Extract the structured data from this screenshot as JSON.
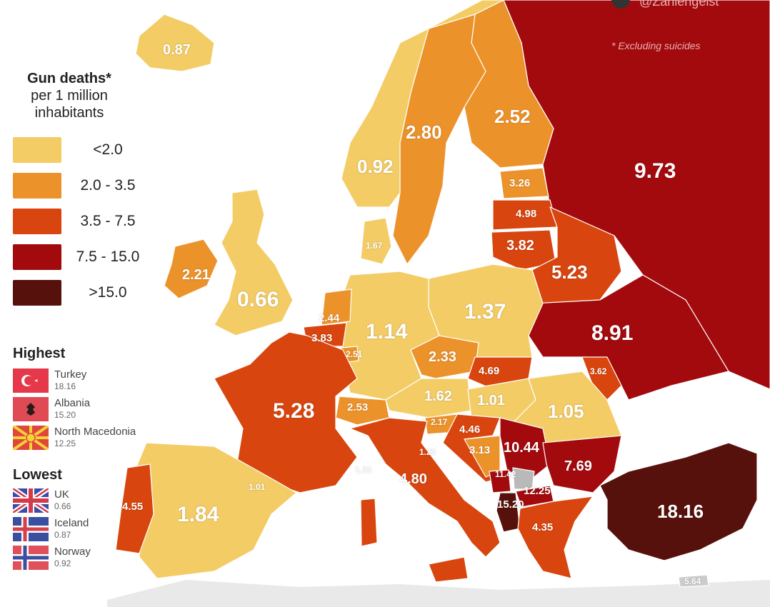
{
  "credit": {
    "handle": "@Zahlengeist",
    "note": "* Excluding suicides"
  },
  "legend": {
    "title_bold": "Gun deaths*",
    "title_line2": "per 1 million",
    "title_line3": "inhabitants",
    "bins": [
      {
        "label": "<2.0",
        "color": "#f3cc66"
      },
      {
        "label": "2.0 - 3.5",
        "color": "#ec922a"
      },
      {
        "label": "3.5 - 7.5",
        "color": "#d8450e"
      },
      {
        "label": "7.5 - 15.0",
        "color": "#a20a0d"
      },
      {
        "label": ">15.0",
        "color": "#57110c"
      }
    ]
  },
  "highest": {
    "heading": "Highest",
    "items": [
      {
        "name": "Turkey",
        "value": "18.16"
      },
      {
        "name": "Albania",
        "value": "15.20"
      },
      {
        "name": "North Macedonia",
        "value": "12.25"
      }
    ]
  },
  "lowest": {
    "heading": "Lowest",
    "items": [
      {
        "name": "UK",
        "value": "0.66"
      },
      {
        "name": "Iceland",
        "value": "0.87"
      },
      {
        "name": "Norway",
        "value": "0.92"
      }
    ]
  },
  "regions": {
    "iceland": {
      "value": "0.87",
      "bin": 0
    },
    "norway": {
      "value": "0.92",
      "bin": 0
    },
    "sweden": {
      "value": "2.80",
      "bin": 1
    },
    "finland": {
      "value": "2.52",
      "bin": 1
    },
    "russia": {
      "value": "9.73",
      "bin": 3
    },
    "estonia": {
      "value": "3.26",
      "bin": 1
    },
    "latvia": {
      "value": "4.98",
      "bin": 2
    },
    "lithuania": {
      "value": "3.82",
      "bin": 2
    },
    "belarus": {
      "value": "5.23",
      "bin": 2
    },
    "ukraine": {
      "value": "8.91",
      "bin": 3
    },
    "moldova": {
      "value": "3.62",
      "bin": 2
    },
    "denmark": {
      "value": "1.67",
      "bin": 0
    },
    "ireland": {
      "value": "2.21",
      "bin": 1
    },
    "uk": {
      "value": "0.66",
      "bin": 0
    },
    "netherlands": {
      "value": "2.44",
      "bin": 1
    },
    "belgium": {
      "value": "3.83",
      "bin": 2
    },
    "luxembourg": {
      "value": "2.51",
      "bin": 1
    },
    "germany": {
      "value": "1.14",
      "bin": 0
    },
    "poland": {
      "value": "1.37",
      "bin": 0
    },
    "czechia": {
      "value": "2.33",
      "bin": 1
    },
    "slovakia": {
      "value": "4.69",
      "bin": 2
    },
    "austria": {
      "value": "1.62",
      "bin": 0
    },
    "hungary": {
      "value": "1.01",
      "bin": 0
    },
    "romania": {
      "value": "1.05",
      "bin": 0
    },
    "switzerland": {
      "value": "2.53",
      "bin": 1
    },
    "france": {
      "value": "5.28",
      "bin": 2
    },
    "slovenia": {
      "value": "2.17",
      "bin": 1
    },
    "croatia": {
      "value": "4.46",
      "bin": 2
    },
    "bosnia": {
      "value": "3.13",
      "bin": 1
    },
    "serbia": {
      "value": "10.44",
      "bin": 3
    },
    "bulgaria": {
      "value": "7.69",
      "bin": 3
    },
    "montenegro": {
      "value": "11.42",
      "bin": 3
    },
    "north_macedonia": {
      "value": "12.25",
      "bin": 3
    },
    "albania": {
      "value": "15.20",
      "bin": 4
    },
    "greece": {
      "value": "4.35",
      "bin": 2
    },
    "turkey": {
      "value": "18.16",
      "bin": 4
    },
    "italy": {
      "value": "4.80",
      "bin": 2
    },
    "san_marino": {
      "value": "1.29"
    },
    "monaco": {
      "value": "1.33"
    },
    "andorra": {
      "value": "1.01"
    },
    "spain": {
      "value": "1.84",
      "bin": 0
    },
    "portugal": {
      "value": "4.55",
      "bin": 2
    },
    "cyprus": {
      "value": "5.64"
    }
  }
}
